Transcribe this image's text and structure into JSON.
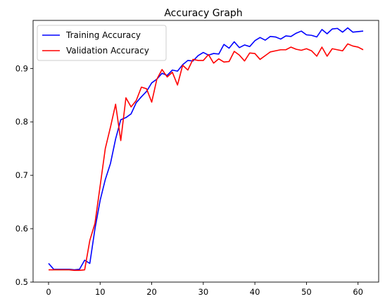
{
  "chart_data": {
    "type": "line",
    "title": "Accuracy Graph",
    "xlabel": "",
    "ylabel": "",
    "xlim": [
      -3,
      64
    ],
    "ylim": [
      0.5,
      0.99
    ],
    "xticks": [
      0,
      10,
      20,
      30,
      40,
      50,
      60
    ],
    "yticks": [
      0.5,
      0.6,
      0.7,
      0.8,
      0.9
    ],
    "grid": false,
    "legend_position": "top-left",
    "x": [
      0,
      1,
      2,
      3,
      4,
      5,
      6,
      7,
      8,
      9,
      10,
      11,
      12,
      13,
      14,
      15,
      16,
      17,
      18,
      19,
      20,
      21,
      22,
      23,
      24,
      25,
      26,
      27,
      28,
      29,
      30,
      31,
      32,
      33,
      34,
      35,
      36,
      37,
      38,
      39,
      40,
      41,
      42,
      43,
      44,
      45,
      46,
      47,
      48,
      49,
      50,
      51,
      52,
      53,
      54,
      55,
      56,
      57,
      58,
      59,
      60,
      61
    ],
    "series": [
      {
        "name": "Training Accuracy",
        "color": "#0000ff",
        "values": [
          0.535,
          0.524,
          0.524,
          0.524,
          0.524,
          0.523,
          0.524,
          0.541,
          0.535,
          0.6,
          0.653,
          0.692,
          0.722,
          0.768,
          0.804,
          0.808,
          0.815,
          0.836,
          0.847,
          0.857,
          0.873,
          0.88,
          0.891,
          0.887,
          0.897,
          0.895,
          0.907,
          0.915,
          0.914,
          0.924,
          0.93,
          0.925,
          0.928,
          0.927,
          0.945,
          0.938,
          0.95,
          0.939,
          0.944,
          0.941,
          0.952,
          0.958,
          0.953,
          0.96,
          0.959,
          0.955,
          0.961,
          0.96,
          0.966,
          0.97,
          0.963,
          0.962,
          0.959,
          0.973,
          0.965,
          0.974,
          0.975,
          0.968,
          0.976,
          0.968,
          0.969,
          0.97
        ]
      },
      {
        "name": "Validation Accuracy",
        "color": "#ff0000",
        "values": [
          0.523,
          0.523,
          0.523,
          0.523,
          0.523,
          0.522,
          0.522,
          0.523,
          0.578,
          0.61,
          0.68,
          0.75,
          0.79,
          0.833,
          0.765,
          0.845,
          0.828,
          0.84,
          0.865,
          0.862,
          0.837,
          0.88,
          0.898,
          0.884,
          0.893,
          0.869,
          0.906,
          0.897,
          0.917,
          0.915,
          0.915,
          0.926,
          0.91,
          0.918,
          0.912,
          0.913,
          0.932,
          0.925,
          0.914,
          0.929,
          0.928,
          0.917,
          0.924,
          0.931,
          0.933,
          0.935,
          0.935,
          0.94,
          0.936,
          0.934,
          0.937,
          0.933,
          0.923,
          0.94,
          0.923,
          0.937,
          0.935,
          0.933,
          0.946,
          0.942,
          0.94,
          0.935
        ]
      }
    ]
  }
}
